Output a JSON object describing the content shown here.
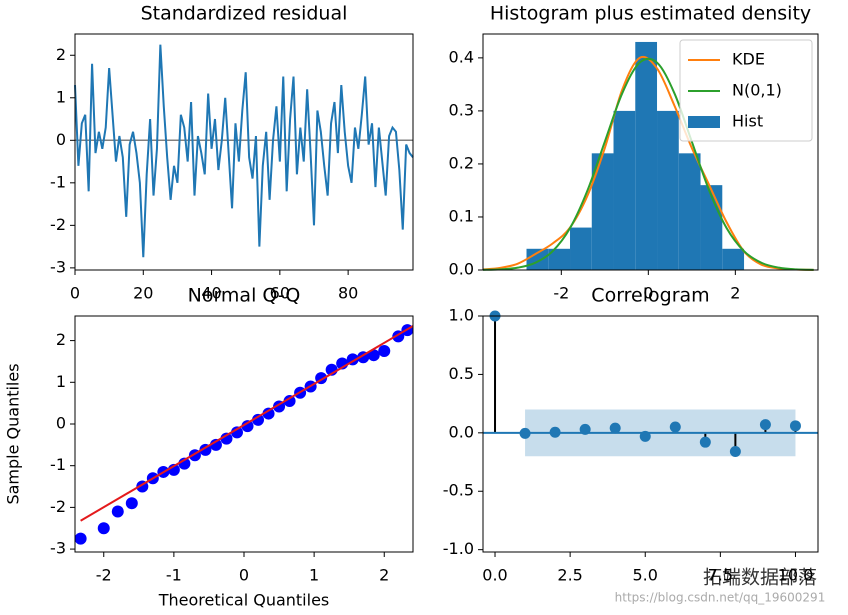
{
  "chart_data": [
    {
      "type": "line",
      "title": "Standardized residual",
      "x": [
        0,
        1,
        2,
        3,
        4,
        5,
        6,
        7,
        8,
        9,
        10,
        11,
        12,
        13,
        14,
        15,
        16,
        17,
        18,
        19,
        20,
        21,
        22,
        23,
        24,
        25,
        26,
        27,
        28,
        29,
        30,
        31,
        32,
        33,
        34,
        35,
        36,
        37,
        38,
        39,
        40,
        41,
        42,
        43,
        44,
        45,
        46,
        47,
        48,
        49,
        50,
        51,
        52,
        53,
        54,
        55,
        56,
        57,
        58,
        59,
        60,
        61,
        62,
        63,
        64,
        65,
        66,
        67,
        68,
        69,
        70,
        71,
        72,
        73,
        74,
        75,
        76,
        77,
        78,
        79,
        80,
        81,
        82,
        83,
        84,
        85,
        86,
        87,
        88,
        89,
        90,
        91,
        92,
        93,
        94,
        95,
        96,
        97,
        98,
        99
      ],
      "series": [
        {
          "color": "#1f77b4",
          "values": [
            1.3,
            -0.6,
            0.4,
            0.6,
            -1.2,
            1.8,
            -0.3,
            0.2,
            -0.2,
            0.3,
            1.7,
            0.6,
            -0.5,
            0.1,
            -0.4,
            -1.8,
            -0.1,
            0.2,
            -0.3,
            -1.0,
            -2.75,
            -0.8,
            0.5,
            -1.3,
            -0.2,
            2.25,
            0.8,
            -0.4,
            -1.4,
            -0.6,
            -1.0,
            0.6,
            0.3,
            -0.5,
            0.9,
            -1.3,
            0.1,
            -0.3,
            -0.8,
            1.1,
            -0.2,
            0.5,
            -0.7,
            0.0,
            1.0,
            -0.3,
            -1.6,
            0.4,
            -0.5,
            0.7,
            1.6,
            -0.4,
            -0.9,
            0.1,
            -2.5,
            -0.6,
            0.2,
            -1.4,
            0.0,
            0.8,
            -0.5,
            1.5,
            -1.2,
            0.5,
            1.5,
            -0.8,
            0.3,
            -0.5,
            1.2,
            -0.3,
            -2.0,
            0.7,
            0.2,
            -0.6,
            -1.3,
            0.4,
            0.9,
            -0.3,
            1.3,
            0.2,
            -0.6,
            -1.0,
            0.3,
            -0.2,
            0.6,
            1.5,
            -0.1,
            0.4,
            -1.1,
            0.3,
            -0.5,
            -1.3,
            0.1,
            0.3,
            0.2,
            -0.7,
            -2.1,
            -0.1,
            -0.3,
            -0.4
          ]
        }
      ],
      "reference_line": 0,
      "xlim": [
        0,
        99
      ],
      "ylim": [
        -3.05,
        2.5
      ],
      "xticks": [
        0,
        20,
        40,
        60,
        80
      ],
      "yticks": [
        -3,
        -2,
        -1,
        0,
        1,
        2
      ]
    },
    {
      "type": "histogram",
      "title": "Histogram plus estimated density",
      "bins": [
        -2.8,
        -2.3,
        -1.8,
        -1.3,
        -0.8,
        -0.3,
        0.2,
        0.7,
        1.2,
        1.7,
        2.2
      ],
      "values": [
        0.04,
        0.04,
        0.08,
        0.22,
        0.3,
        0.43,
        0.3,
        0.22,
        0.16,
        0.04
      ],
      "name": "Hist",
      "color": "#1f77b4",
      "series": [
        {
          "name": "KDE",
          "color": "#ff7f0e",
          "x": [
            -3.8,
            -3.4,
            -3.0,
            -2.6,
            -2.2,
            -1.8,
            -1.4,
            -1.0,
            -0.6,
            -0.2,
            0.2,
            0.6,
            1.0,
            1.4,
            1.8,
            2.2,
            2.6,
            3.0,
            3.4,
            3.8
          ],
          "values": [
            0.001,
            0.004,
            0.012,
            0.03,
            0.05,
            0.08,
            0.14,
            0.23,
            0.34,
            0.4,
            0.38,
            0.31,
            0.23,
            0.16,
            0.09,
            0.035,
            0.01,
            0.003,
            0.001,
            0.0002
          ]
        },
        {
          "name": "N(0,1)",
          "color": "#2ca02c",
          "x": [
            -3.8,
            -3.4,
            -3.0,
            -2.6,
            -2.2,
            -1.8,
            -1.4,
            -1.0,
            -0.6,
            -0.2,
            0.2,
            0.6,
            1.0,
            1.4,
            1.8,
            2.2,
            2.6,
            3.0,
            3.4,
            3.8
          ],
          "values": [
            0.0003,
            0.0012,
            0.0044,
            0.0136,
            0.0355,
            0.079,
            0.1497,
            0.242,
            0.3332,
            0.391,
            0.391,
            0.3332,
            0.242,
            0.1497,
            0.079,
            0.0355,
            0.0136,
            0.0044,
            0.0012,
            0.0003
          ]
        }
      ],
      "legend": "upper right",
      "xlim": [
        -3.8,
        3.9
      ],
      "ylim": [
        0,
        0.445
      ],
      "xticks": [
        -2,
        0,
        2
      ],
      "yticks": [
        {
          "value": 0,
          "label": "0.0"
        },
        0.1,
        0.2,
        0.3,
        0.4
      ]
    },
    {
      "type": "scatter",
      "title": "Normal Q-Q",
      "xlabel": "Theoretical Quantiles",
      "ylabel": "Sample Quantiles",
      "x": [
        -2.33,
        -2.0,
        -1.8,
        -1.6,
        -1.45,
        -1.3,
        -1.15,
        -1.0,
        -0.85,
        -0.7,
        -0.55,
        -0.4,
        -0.25,
        -0.1,
        0.05,
        0.2,
        0.35,
        0.5,
        0.65,
        0.8,
        0.95,
        1.1,
        1.25,
        1.4,
        1.55,
        1.7,
        1.85,
        2.0,
        2.2,
        2.33
      ],
      "values": [
        -2.75,
        -2.5,
        -2.1,
        -1.9,
        -1.5,
        -1.3,
        -1.15,
        -1.1,
        -0.95,
        -0.75,
        -0.62,
        -0.5,
        -0.35,
        -0.2,
        -0.05,
        0.1,
        0.25,
        0.42,
        0.55,
        0.75,
        0.9,
        1.1,
        1.3,
        1.45,
        1.55,
        1.6,
        1.65,
        1.75,
        2.1,
        2.25
      ],
      "color": "#0000ff",
      "fit_line": {
        "x": [
          -2.33,
          2.41
        ],
        "y": [
          -2.32,
          2.35
        ],
        "color": "#e41a1c"
      },
      "xlim": [
        -2.41,
        2.41
      ],
      "ylim": [
        -3.07,
        2.59
      ],
      "xticks": [
        -2,
        -1,
        0,
        1,
        2
      ],
      "yticks": [
        -3,
        -2,
        -1,
        0,
        1,
        2
      ]
    },
    {
      "type": "stem",
      "title": "Correlogram",
      "x": [
        0,
        1,
        2,
        3,
        4,
        5,
        6,
        7,
        8,
        9,
        10
      ],
      "values": [
        1.0,
        -0.005,
        0.005,
        0.03,
        0.04,
        -0.03,
        0.05,
        -0.08,
        -0.16,
        0.07,
        0.06
      ],
      "color": "#1f77b4",
      "baseline": 0,
      "confidence_band": {
        "x": [
          1,
          10
        ],
        "lower": [
          -0.2,
          -0.2
        ],
        "upper": [
          0.2,
          0.2
        ]
      },
      "xlim": [
        -0.4,
        10.75
      ],
      "ylim": [
        -1.02,
        1.0
      ],
      "xticks": [
        {
          "value": 0,
          "label": "0.0"
        },
        2.5,
        {
          "value": 5,
          "label": "5.0"
        },
        7.5,
        {
          "value": 10,
          "label": "10.0"
        }
      ],
      "yticks": [
        {
          "value": -1,
          "label": "-1.0"
        },
        -0.5,
        {
          "value": 0,
          "label": "0.0"
        },
        0.5,
        {
          "value": 1,
          "label": "1.0"
        }
      ]
    }
  ],
  "watermark": {
    "text": "拓端数据部落",
    "url": "https://blog.csdn.net/qq_19600291"
  }
}
